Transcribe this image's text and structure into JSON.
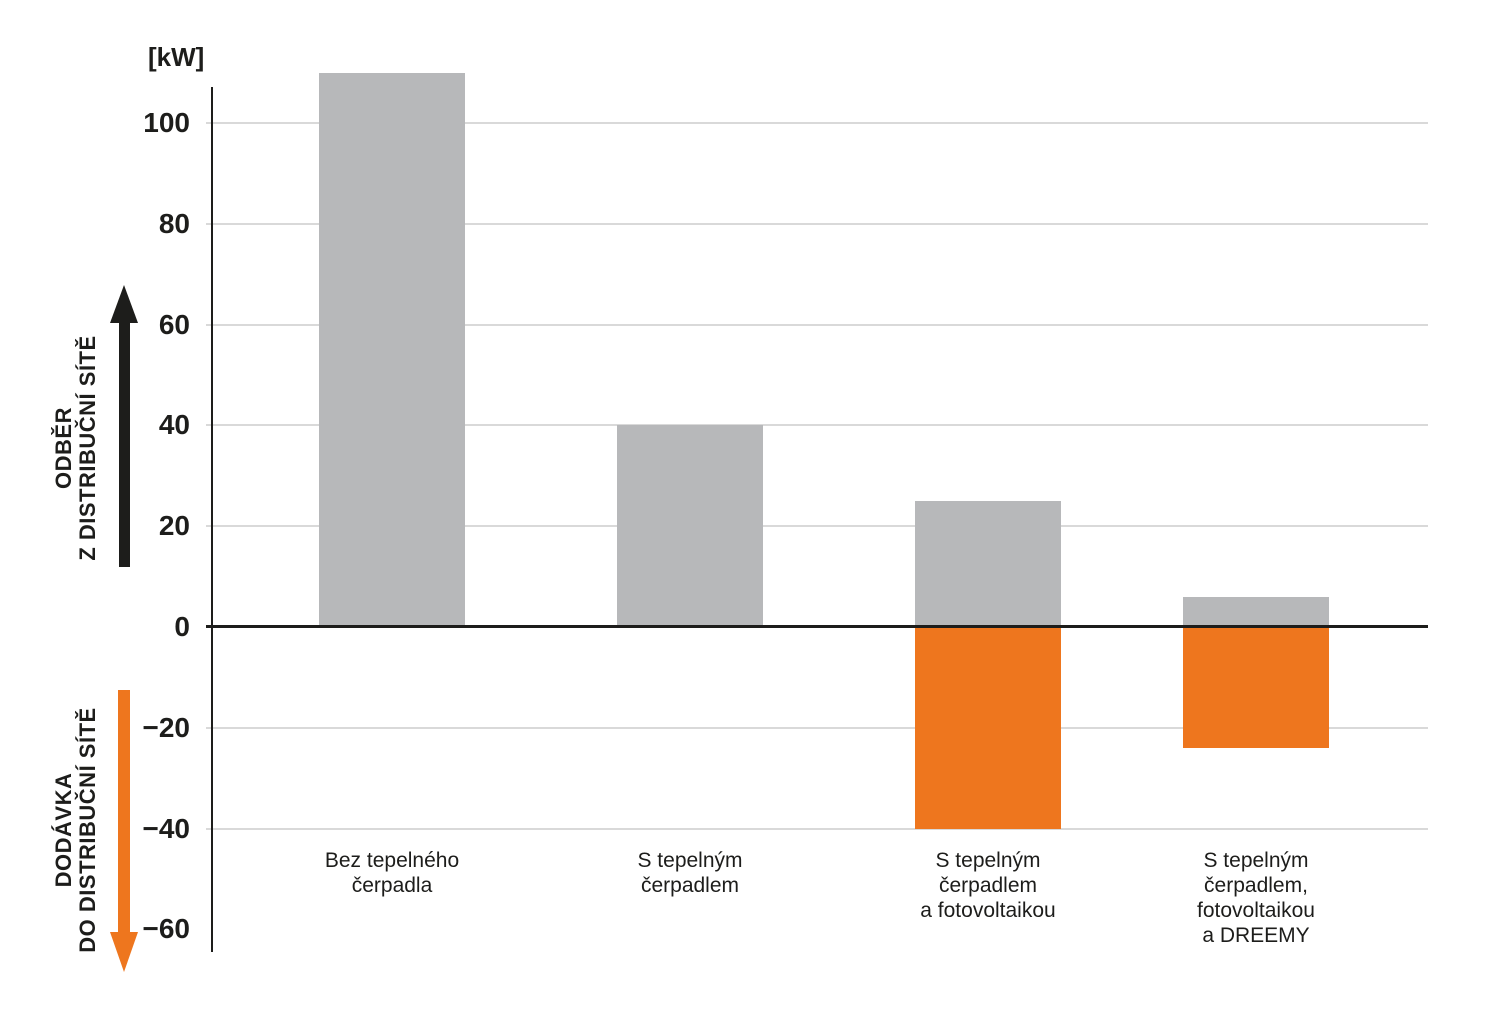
{
  "chart_data": {
    "type": "bar",
    "title": "",
    "unit_label": "[kW]",
    "xlabel": "",
    "ylabel": "[kW]",
    "ylim": [
      -65,
      113
    ],
    "grid": true,
    "legend": "none",
    "tick_values": [
      100,
      80,
      60,
      40,
      20,
      0,
      -20,
      -40,
      -60
    ],
    "tick_labels": [
      "100",
      "80",
      "60",
      "40",
      "20",
      "0",
      "−20",
      "−40",
      "−60"
    ],
    "gridlines": [
      100,
      80,
      60,
      40,
      20,
      -20,
      -40
    ],
    "categories": [
      {
        "label": "Bez tepelného čerpadla",
        "lines": [
          "Bez tepelného",
          "čerpadla"
        ]
      },
      {
        "label": "S tepelným čerpadlem",
        "lines": [
          "S tepelným",
          "čerpadlem"
        ]
      },
      {
        "label": "S tepelným čerpadlem a fotovoltaikou",
        "lines": [
          "S tepelným",
          "čerpadlem",
          "a fotovoltaikou"
        ]
      },
      {
        "label": "S tepelným čerpadlem, fotovoltaikou a DREEMY",
        "lines": [
          "S tepelným",
          "čerpadlem,",
          "fotovoltaikou",
          "a DREEMY"
        ]
      }
    ],
    "series": [
      {
        "name": "ODBĚR Z DISTRIBUČNÍ SÍTĚ",
        "role": "positive",
        "color": "#b7b8ba",
        "values": [
          110,
          40,
          25,
          6
        ]
      },
      {
        "name": "DODÁVKA DO DISTRIBUČNÍ SÍTĚ",
        "role": "negative",
        "color": "#ee761e",
        "values": [
          0,
          0,
          -40,
          -24
        ]
      }
    ]
  },
  "side_labels": {
    "positive": {
      "lines": [
        "ODBĚR",
        "Z DISTRIBUČNÍ SÍTĚ"
      ],
      "arrow": "up-arrow",
      "arrow_color": "#1d1d1b"
    },
    "negative": {
      "lines": [
        "DODÁVKA",
        "DO DISTRIBUČNÍ SÍTĚ"
      ],
      "arrow": "down-arrow",
      "arrow_color": "#ee761e"
    }
  },
  "colors": {
    "bar_gray": "#b7b8ba",
    "bar_orange": "#ee761e",
    "gridline": "#d9d9d9",
    "axis": "#1d1d1b",
    "text": "#1d1d1b"
  }
}
